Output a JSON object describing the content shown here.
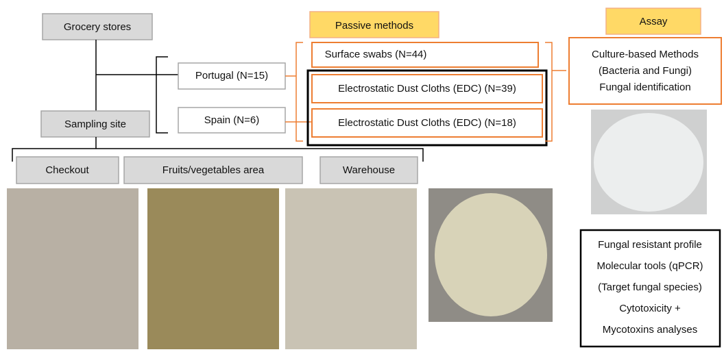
{
  "grocery": "Grocery stores",
  "sampling": "Sampling site",
  "countries": [
    "Portugal (N=15)",
    "Spain (N=6)"
  ],
  "sites": [
    "Checkout",
    "Fruits/vegetables area",
    "Warehouse"
  ],
  "passive": {
    "title": "Passive methods",
    "items": [
      "Surface swabs (N=44)",
      "Electrostatic Dust Cloths (EDC) (N=39)",
      "Electrostatic Dust Cloths (EDC) (N=18)"
    ]
  },
  "assay": {
    "title": "Assay",
    "lines": [
      "Culture-based Methods",
      "(Bacteria and Fungi)",
      "Fungal identification"
    ]
  },
  "analyses": [
    "Fungal resistant profile",
    "Molecular tools (qPCR)",
    "(Target fungal species)",
    "Cytotoxicity +",
    "Mycotoxins analyses"
  ]
}
